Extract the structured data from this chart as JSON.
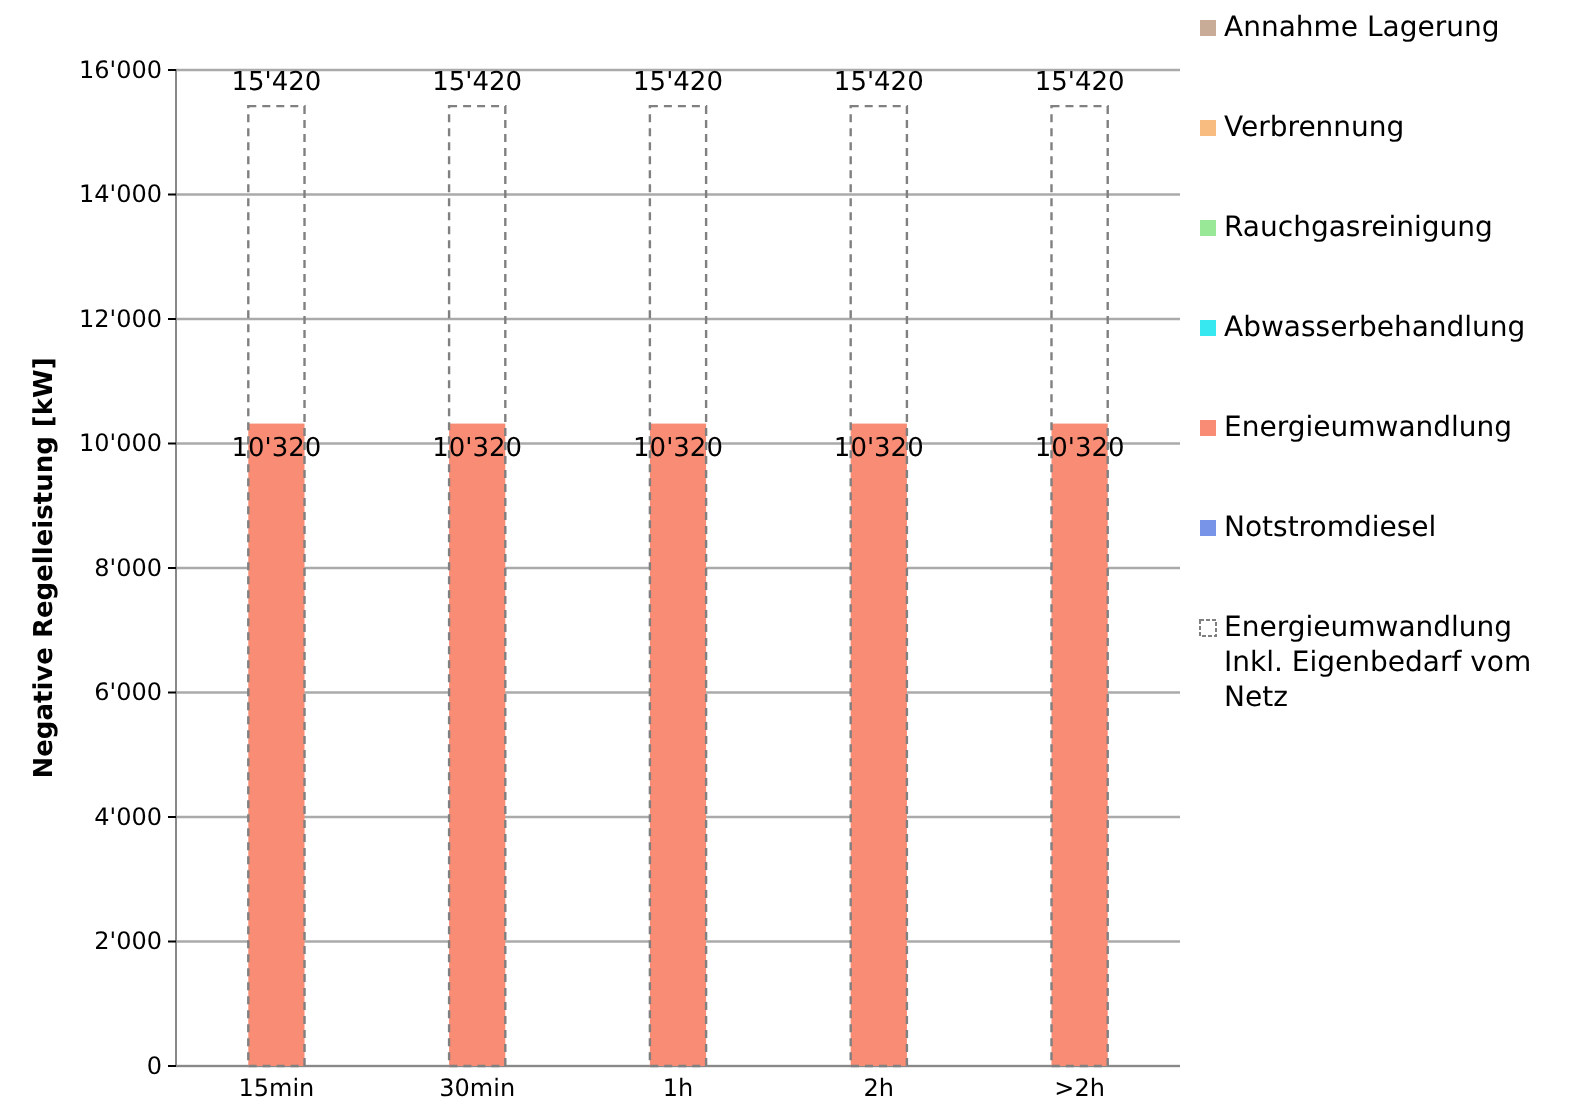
{
  "chart_data": {
    "type": "bar",
    "ylabel": "Negative Regelleistung [kW]",
    "categories": [
      "15min",
      "30min",
      "1h",
      "2h",
      ">2h"
    ],
    "ylim": [
      0,
      16000
    ],
    "yticks": [
      0,
      {
        "value": 2000,
        "label": "2'000"
      },
      {
        "value": 4000,
        "label": "4'000"
      },
      {
        "value": 6000,
        "label": "6'000"
      },
      {
        "value": 8000,
        "label": "8'000"
      },
      {
        "value": 10000,
        "label": "10'000"
      },
      {
        "value": 12000,
        "label": "12'000"
      },
      {
        "value": 14000,
        "label": "14'000"
      },
      {
        "value": 16000,
        "label": "16'000"
      }
    ],
    "grid": "y",
    "legend": "right",
    "series": [
      {
        "name": "Annahme Lagerung",
        "color": "#c8ac98",
        "values": [
          0,
          0,
          0,
          0,
          0
        ]
      },
      {
        "name": "Verbrennung",
        "color": "#f8bc80",
        "values": [
          0,
          0,
          0,
          0,
          0
        ]
      },
      {
        "name": "Rauchgasreinigung",
        "color": "#98e898",
        "values": [
          0,
          0,
          0,
          0,
          0
        ]
      },
      {
        "name": "Abwasserbehandlung",
        "color": "#38e8f0",
        "values": [
          0,
          0,
          0,
          0,
          0
        ]
      },
      {
        "name": "Energieumwandlung",
        "color": "#f88c74",
        "values": [
          10320,
          10320,
          10320,
          10320,
          10320
        ],
        "value_labels": [
          "10'320",
          "10'320",
          "10'320",
          "10'320",
          "10'320"
        ]
      },
      {
        "name": "Notstromdiesel",
        "color": "#7894e8",
        "values": [
          0,
          0,
          0,
          0,
          0
        ]
      },
      {
        "name": "Energieumwandlung Inkl. Eigenbedarf vom Netz",
        "color": "#808080",
        "line_style": "dashed",
        "values": [
          15420,
          15420,
          15420,
          15420,
          15420
        ],
        "value_labels": [
          "15'420",
          "15'420",
          "15'420",
          "15'420",
          "15'420"
        ]
      }
    ]
  }
}
